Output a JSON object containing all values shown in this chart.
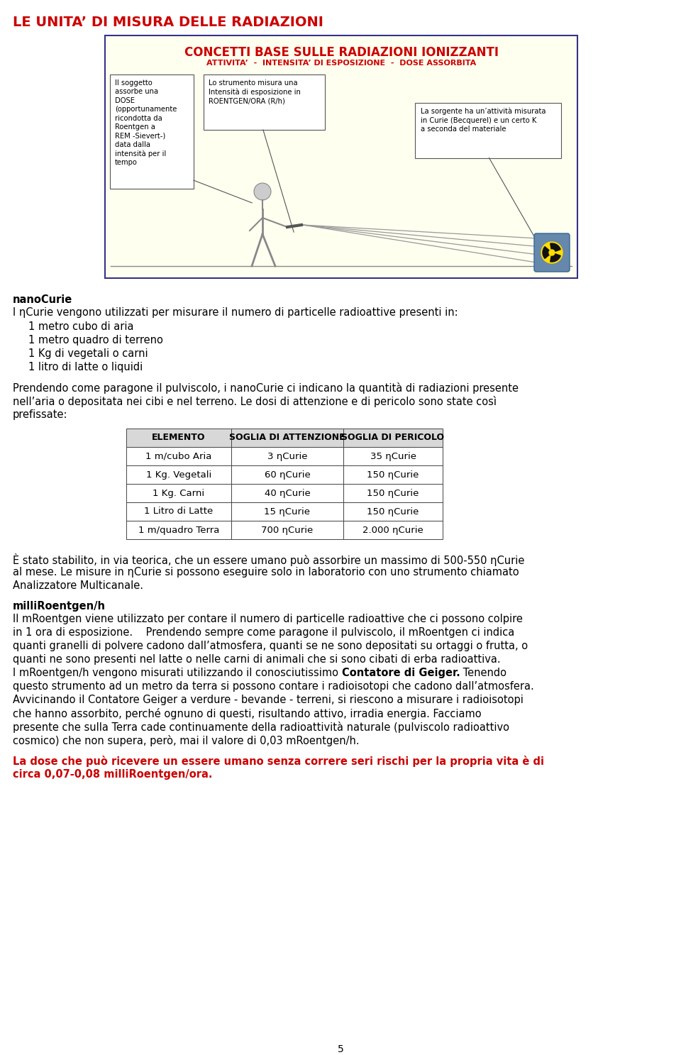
{
  "title": "LE UNITA’ DI MISURA DELLE RADIAZIONI",
  "title_color": "#cc0000",
  "title_fontsize": 14,
  "box_title1": "CONCETTI BASE SULLE RADIAZIONI IONIZZANTI",
  "box_title2": "ATTIVITA’  -  INTENSITA’ DI ESPOSIZIONE  -  DOSE ASSORBITA",
  "box_bg": "#fffff0",
  "box_border": "#333388",
  "section1_bold": "nanoCurie",
  "section1_text": "I ηCurie vengono utilizzati per misurare il numero di particelle radioattive presenti in:",
  "section1_items": [
    "1 metro cubo di aria",
    "1 metro quadro di terreno",
    "1 Kg di vegetali o carni",
    "1 litro di latte o liquidi"
  ],
  "table_headers": [
    "ELEMENTO",
    "SOGLIA DI ATTENZIONE",
    "SOGLIA DI PERICOLO"
  ],
  "table_rows": [
    [
      "1 m/cubo Aria",
      "3 ηCurie",
      "35 ηCurie"
    ],
    [
      "1 Kg. Vegetali",
      "60 ηCurie",
      "150 ηCurie"
    ],
    [
      "1 Kg. Carni",
      "40 ηCurie",
      "150 ηCurie"
    ],
    [
      "1 Litro di Latte",
      "15 ηCurie",
      "150 ηCurie"
    ],
    [
      "1 m/quadro Terra",
      "700 ηCurie",
      "2.000 ηCurie"
    ]
  ],
  "paragraph4_color": "#cc0000",
  "page_number": "5",
  "caption_left": "Il soggetto\nassorbe una\nDOSE\n(opportunamente\nricondotta da\nRoentgen a\nREM -Sievert-)\ndata dalla\nintensità per il\ntempo",
  "caption_center": "Lo strumento misura una\nIntensità di esposizione in\nROENTGEN/ORA (R/h)",
  "caption_right": "La sorgente ha un’attività misurata\nin Curie (Becquerel) e un certo K\na seconda del materiale"
}
